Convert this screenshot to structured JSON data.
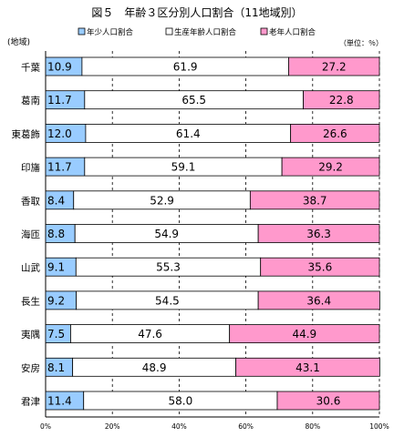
{
  "chart_data": {
    "type": "bar",
    "stacked": true,
    "orientation": "horizontal",
    "title": "図５　年齢３区分別人口割合（11地域別）",
    "category_axis_label": "(地域)",
    "unit_note": "（単位：％）",
    "categories": [
      "千葉",
      "葛南",
      "東葛飾",
      "印旛",
      "香取",
      "海匝",
      "山武",
      "長生",
      "夷隅",
      "安房",
      "君津"
    ],
    "series": [
      {
        "name": "年少人口割合",
        "color": "#99ccff",
        "values": [
          10.9,
          11.7,
          12.0,
          11.7,
          8.4,
          8.8,
          9.1,
          9.2,
          7.5,
          8.1,
          11.4
        ],
        "labels": [
          "10.9",
          "11.7",
          "12.0",
          "11.7",
          "8.4",
          "8.8",
          "9.1",
          "9.2",
          "7.5",
          "8.1",
          "11.4"
        ]
      },
      {
        "name": "生産年齢人口割合",
        "color": "#ffffff",
        "values": [
          61.9,
          65.5,
          61.4,
          59.1,
          52.9,
          54.9,
          55.3,
          54.5,
          47.6,
          48.9,
          58.0
        ],
        "labels": [
          "61.9",
          "65.5",
          "61.4",
          "59.1",
          "52.9",
          "54.9",
          "55.3",
          "54.5",
          "47.6",
          "48.9",
          "58.0"
        ]
      },
      {
        "name": "老年人口割合",
        "color": "#ff99cc",
        "values": [
          27.2,
          22.8,
          26.6,
          29.2,
          38.7,
          36.3,
          35.6,
          36.4,
          44.9,
          43.1,
          30.6
        ],
        "labels": [
          "27.2",
          "22.8",
          "26.6",
          "29.2",
          "38.7",
          "36.3",
          "35.6",
          "36.4",
          "44.9",
          "43.1",
          "30.6"
        ]
      }
    ],
    "xlim": [
      0,
      100
    ],
    "xticks": [
      "0%",
      "20%",
      "40%",
      "60%",
      "80%",
      "100%"
    ],
    "grid": "vertical dashed",
    "legend": "top"
  }
}
